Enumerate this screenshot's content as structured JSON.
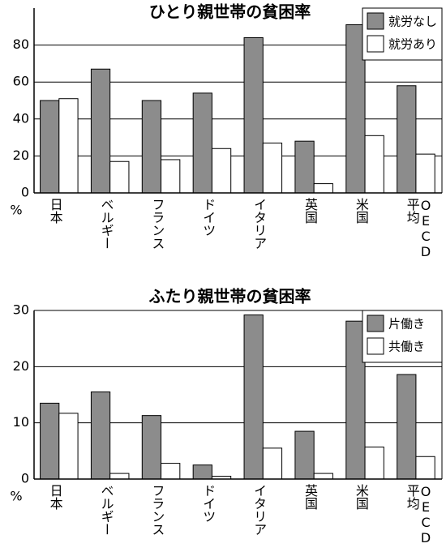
{
  "chart_data": [
    {
      "type": "bar",
      "title": "ひとり親世帯の貧困率",
      "y_unit": "%",
      "categories": [
        "日本",
        "ベルギー",
        "フランス",
        "ドイツ",
        "イタリア",
        "英国",
        "米国",
        "OECD平均"
      ],
      "series": [
        {
          "name": "就労なし",
          "color": "#8c8c8c",
          "values": [
            50,
            67,
            50,
            54,
            84,
            28,
            91,
            58
          ]
        },
        {
          "name": "就労あり",
          "color": "#ffffff",
          "values": [
            51,
            17,
            18,
            24,
            27,
            5,
            31,
            21
          ]
        }
      ],
      "ylim": [
        0,
        100
      ],
      "yticks": [
        0,
        20,
        40,
        60,
        80
      ],
      "grid": true,
      "legend": "upper right"
    },
    {
      "type": "bar",
      "title": "ふたり親世帯の貧困率",
      "y_unit": "%",
      "categories": [
        "日本",
        "ベルギー",
        "フランス",
        "ドイツ",
        "イタリア",
        "英国",
        "米国",
        "OECD平均"
      ],
      "series": [
        {
          "name": "片働き",
          "color": "#8c8c8c",
          "values": [
            13.5,
            15.5,
            11.3,
            2.5,
            29.2,
            8.5,
            28.1,
            18.6
          ]
        },
        {
          "name": "共働き",
          "color": "#ffffff",
          "values": [
            11.7,
            1.0,
            2.8,
            0.5,
            5.5,
            1.0,
            5.7,
            4.0
          ]
        }
      ],
      "ylim": [
        0,
        30
      ],
      "yticks": [
        0,
        10,
        20,
        30
      ],
      "grid": true,
      "legend": "upper right"
    }
  ]
}
